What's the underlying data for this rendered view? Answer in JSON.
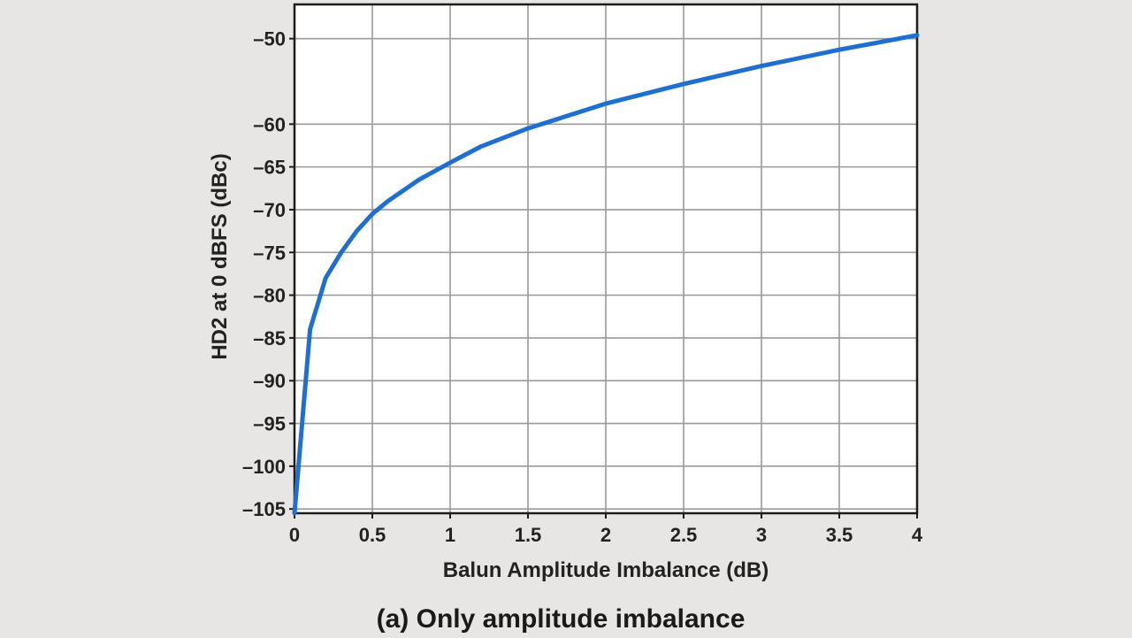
{
  "chart_data": {
    "type": "line",
    "title": "(a) Only amplitude imbalance",
    "xlabel": "Balun Amplitude Imbalance (dB)",
    "ylabel": "HD2 at 0 dBFS (dBc)",
    "xlim": [
      0,
      4
    ],
    "ylim": [
      -105.5,
      -46
    ],
    "grid": true,
    "x_ticks": [
      0,
      0.5,
      1,
      1.5,
      2,
      2.5,
      3,
      3.5,
      4
    ],
    "x_tick_labels": [
      "0",
      "0.5",
      "1",
      "1.5",
      "2",
      "2.5",
      "3",
      "3.5",
      "4"
    ],
    "y_ticks": [
      -50,
      -60,
      -65,
      -70,
      -75,
      -80,
      -85,
      -90,
      -95,
      -100,
      -105
    ],
    "y_tick_labels": [
      "–50",
      "–60",
      "–65",
      "–70",
      "–75",
      "–80",
      "–85",
      "–90",
      "–95",
      "–100",
      "–105"
    ],
    "series": [
      {
        "color": "#1f6fd1",
        "x": [
          0,
          0.1,
          0.2,
          0.3,
          0.4,
          0.5,
          0.6,
          0.8,
          1.0,
          1.2,
          1.5,
          2.0,
          2.5,
          3.0,
          3.5,
          4.0
        ],
        "y": [
          -105.5,
          -84.0,
          -78.0,
          -75.0,
          -72.5,
          -70.5,
          -69.0,
          -66.5,
          -64.5,
          -62.6,
          -60.5,
          -57.6,
          -55.3,
          -53.2,
          -51.3,
          -49.6
        ]
      }
    ]
  }
}
